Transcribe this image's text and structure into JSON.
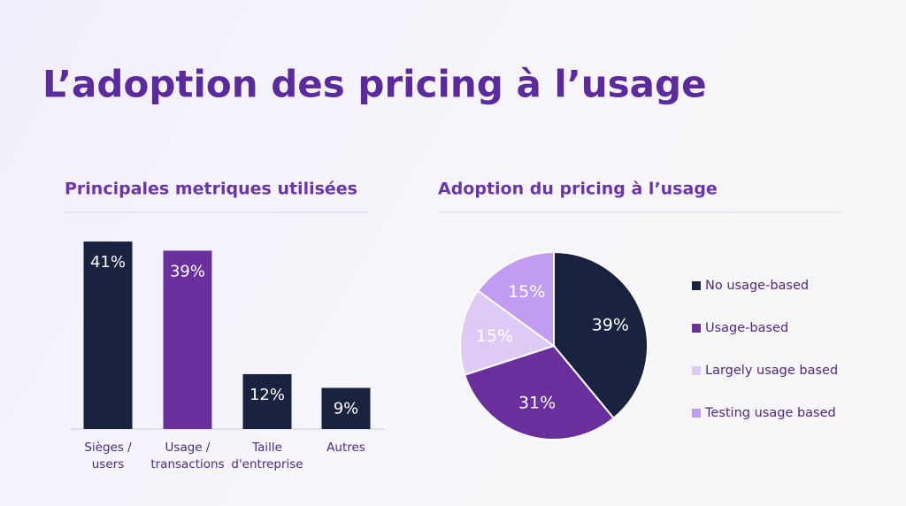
{
  "title": "L’adoption des pricing à l’usage",
  "chart_data": [
    {
      "type": "bar",
      "title": "Principales metriques utilisées",
      "categories": [
        "Sièges / users",
        "Usage / transactions",
        "Taille d'entreprise",
        "Autres"
      ],
      "values": [
        41,
        39,
        12,
        9
      ],
      "value_labels": [
        "41%",
        "39%",
        "12%",
        "9%"
      ],
      "colors": [
        "#19223f",
        "#6a2f9c",
        "#19223f",
        "#19223f"
      ]
    },
    {
      "type": "pie",
      "title": "Adoption du pricing à l’usage",
      "categories": [
        "No usage-based",
        "Usage-based",
        "Largely usage based",
        "Testing usage based"
      ],
      "values": [
        39,
        31,
        15,
        15
      ],
      "value_labels": [
        "39%",
        "31%",
        "15%",
        "15%"
      ],
      "colors": [
        "#19223f",
        "#6a2f9c",
        "#ddcbf6",
        "#c29cf0"
      ],
      "legend": "right"
    }
  ]
}
